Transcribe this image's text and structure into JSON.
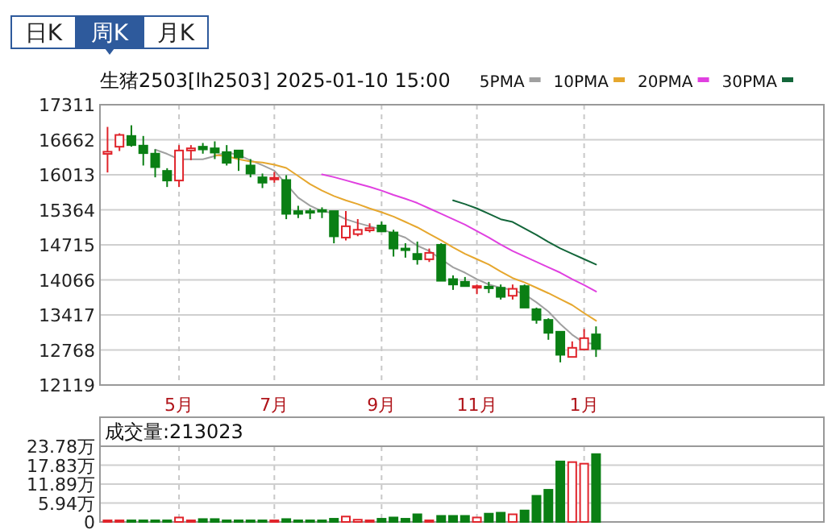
{
  "chart_data": [
    {
      "type": "candlestick",
      "title": "生猪2503[lh2503] 2025-01-10 15:00",
      "annotations": [
        "日K",
        "周K",
        "月K"
      ],
      "categories": [
        null,
        null,
        null,
        null,
        null,
        null,
        "5月",
        null,
        null,
        null,
        null,
        null,
        null,
        null,
        "7月",
        null,
        null,
        null,
        null,
        null,
        null,
        null,
        null,
        "9月",
        null,
        null,
        null,
        null,
        null,
        null,
        null,
        "11月",
        null,
        null,
        null,
        null,
        null,
        null,
        null,
        null,
        "1月",
        null
      ],
      "ohlc": [
        [
          16400,
          16900,
          16056,
          16440
        ],
        [
          16533,
          16781,
          16453,
          16751
        ],
        [
          16732,
          16930,
          16533,
          16563
        ],
        [
          16553,
          16732,
          16185,
          16414
        ],
        [
          16404,
          16483,
          15966,
          16155
        ],
        [
          16085,
          16135,
          15787,
          15907
        ],
        [
          15907,
          16563,
          15787,
          16463
        ],
        [
          16463,
          16563,
          16284,
          16503
        ],
        [
          16533,
          16602,
          16404,
          16483
        ],
        [
          16503,
          16632,
          16304,
          16424
        ],
        [
          16433,
          16563,
          16185,
          16235
        ],
        [
          16463,
          16483,
          16085,
          16334
        ],
        [
          16185,
          16304,
          15966,
          16036
        ],
        [
          15966,
          16036,
          15767,
          15867
        ],
        [
          15937,
          16066,
          15867,
          15957
        ],
        [
          15916,
          16006,
          15191,
          15290
        ],
        [
          15340,
          15439,
          15211,
          15290
        ],
        [
          15340,
          15390,
          15191,
          15320
        ],
        [
          15360,
          15410,
          15211,
          15340
        ],
        [
          15340,
          15360,
          14744,
          14873
        ],
        [
          14850,
          15343,
          14796,
          15060
        ],
        [
          14914,
          15193,
          14875,
          14994
        ],
        [
          14984,
          15114,
          14945,
          15024
        ],
        [
          15074,
          15144,
          14945,
          14964
        ],
        [
          14945,
          14995,
          14498,
          14647
        ],
        [
          14647,
          14746,
          14478,
          14627
        ],
        [
          14547,
          14776,
          14349,
          14448
        ],
        [
          14448,
          14647,
          14398,
          14567
        ],
        [
          14716,
          14746,
          14021,
          14050
        ],
        [
          14080,
          14150,
          13881,
          13981
        ],
        [
          14030,
          14120,
          13931,
          13951
        ],
        [
          13921,
          13981,
          13802,
          13951
        ],
        [
          13941,
          14030,
          13822,
          13921
        ],
        [
          13921,
          13981,
          13702,
          13752
        ],
        [
          13772,
          13981,
          13702,
          13901
        ],
        [
          13951,
          13981,
          13553,
          13553
        ],
        [
          13523,
          13553,
          13255,
          13325
        ],
        [
          13325,
          13355,
          12957,
          13086
        ],
        [
          13106,
          13126,
          12539,
          12679
        ],
        [
          12639,
          12927,
          12639,
          12808
        ],
        [
          12778,
          13156,
          12778,
          12987
        ],
        [
          13057,
          13205,
          12639,
          12788
        ]
      ],
      "colors": [
        "#e0242b",
        "#e0242b",
        "#0a7f14",
        "#0a7f14",
        "#0a7f14",
        "#0a7f14",
        "#e0242b",
        "#e0242b",
        "#0a7f14",
        "#0a7f14",
        "#0a7f14",
        "#0a7f14",
        "#0a7f14",
        "#0a7f14",
        "#e0242b",
        "#0a7f14",
        "#0a7f14",
        "#0a7f14",
        "#0a7f14",
        "#0a7f14",
        "#e0242b",
        "#e0242b",
        "#e0242b",
        "#0a7f14",
        "#0a7f14",
        "#0a7f14",
        "#0a7f14",
        "#e0242b",
        "#0a7f14",
        "#0a7f14",
        "#0a7f14",
        "#e0242b",
        "#0a7f14",
        "#0a7f14",
        "#e0242b",
        "#0a7f14",
        "#0a7f14",
        "#0a7f14",
        "#0a7f14",
        "#e0242b",
        "#e0242b",
        "#0a7f14"
      ],
      "series": [
        {
          "type": "line",
          "name": "5PMA",
          "color": "#a0a0a0",
          "values": [
            null,
            null,
            null,
            null,
            16480,
            16400,
            16300,
            16300,
            16300,
            16360,
            16430,
            16380,
            16280,
            16190,
            16090,
            15840,
            15590,
            15440,
            15340,
            15300,
            15190,
            15120,
            15060,
            15000,
            14930,
            14850,
            14700,
            14600,
            14450,
            14300,
            14200,
            14080,
            13980,
            13920,
            13880,
            13800,
            13650,
            13480,
            13250,
            13050,
            12900,
            12880
          ]
        },
        {
          "type": "line",
          "name": "10PMA",
          "color": "#e6a72e",
          "values": [
            null,
            null,
            null,
            null,
            null,
            null,
            null,
            null,
            null,
            16380,
            16360,
            16300,
            16260,
            16240,
            16200,
            16140,
            15990,
            15840,
            15720,
            15620,
            15540,
            15470,
            15390,
            15320,
            15240,
            15140,
            15040,
            14920,
            14800,
            14670,
            14550,
            14450,
            14350,
            14220,
            14100,
            14020,
            13920,
            13820,
            13710,
            13600,
            13450,
            13310
          ]
        },
        {
          "type": "line",
          "name": "20PMA",
          "color": "#e040e0",
          "values": [
            null,
            null,
            null,
            null,
            null,
            null,
            null,
            null,
            null,
            null,
            null,
            null,
            null,
            null,
            null,
            null,
            null,
            null,
            16020,
            15970,
            15910,
            15850,
            15790,
            15720,
            15640,
            15570,
            15490,
            15390,
            15290,
            15190,
            15090,
            14970,
            14850,
            14720,
            14600,
            14500,
            14400,
            14300,
            14200,
            14080,
            13970,
            13850
          ]
        },
        {
          "type": "line",
          "name": "30PMA",
          "color": "#13663a",
          "values": [
            null,
            null,
            null,
            null,
            null,
            null,
            null,
            null,
            null,
            null,
            null,
            null,
            null,
            null,
            null,
            null,
            null,
            null,
            null,
            null,
            null,
            null,
            null,
            null,
            null,
            null,
            null,
            null,
            null,
            15540,
            15470,
            15390,
            15290,
            15190,
            15140,
            15020,
            14900,
            14770,
            14650,
            14550,
            14450,
            14350
          ]
        }
      ],
      "ylim": [
        12119,
        17311
      ],
      "yticks": [
        12119,
        12768,
        13417,
        14066,
        14715,
        15364,
        16013,
        16662,
        17311
      ],
      "grid": true,
      "legend": "top right",
      "marker": "none"
    },
    {
      "type": "bar",
      "title": "成交量:213023",
      "categories": [
        null,
        null,
        null,
        null,
        null,
        null,
        null,
        null,
        null,
        null,
        null,
        null,
        null,
        null,
        null,
        null,
        null,
        null,
        null,
        null,
        null,
        null,
        null,
        null,
        null,
        null,
        null,
        null,
        null,
        null,
        null,
        null,
        null,
        null,
        null,
        null,
        null,
        null,
        null,
        null,
        null,
        null
      ],
      "values": [
        0.5,
        0.5,
        0.5,
        0.5,
        0.5,
        0.5,
        1.4,
        0.5,
        0.9,
        0.9,
        0.5,
        0.5,
        0.5,
        0.5,
        0.5,
        0.9,
        0.5,
        0.5,
        0.5,
        1.0,
        1.7,
        0.7,
        0.5,
        1.0,
        1.4,
        1.0,
        2.4,
        0.5,
        1.9,
        1.9,
        1.9,
        1.4,
        2.6,
        2.9,
        2.4,
        3.6,
        8.2,
        10.1,
        19.0,
        18.8,
        18.3,
        21.3
      ],
      "colors": [
        "#e0242b",
        "#e0242b",
        "#0a7f14",
        "#0a7f14",
        "#0a7f14",
        "#0a7f14",
        "#e0242b",
        "#e0242b",
        "#0a7f14",
        "#0a7f14",
        "#0a7f14",
        "#0a7f14",
        "#0a7f14",
        "#0a7f14",
        "#e0242b",
        "#0a7f14",
        "#0a7f14",
        "#0a7f14",
        "#0a7f14",
        "#0a7f14",
        "#e0242b",
        "#e0242b",
        "#e0242b",
        "#0a7f14",
        "#0a7f14",
        "#0a7f14",
        "#0a7f14",
        "#e0242b",
        "#0a7f14",
        "#0a7f14",
        "#0a7f14",
        "#e0242b",
        "#0a7f14",
        "#0a7f14",
        "#e0242b",
        "#0a7f14",
        "#0a7f14",
        "#0a7f14",
        "#0a7f14",
        "#e0242b",
        "#e0242b",
        "#0a7f14"
      ],
      "ylim": [
        0,
        23.78
      ],
      "yticks": [
        0,
        {
          "value": 5.94,
          "label": "5.94万"
        },
        {
          "value": 11.89,
          "label": "11.89万"
        },
        {
          "value": 17.83,
          "label": "17.83万"
        },
        {
          "value": 23.78,
          "label": "23.78万"
        }
      ],
      "grid": true
    }
  ]
}
